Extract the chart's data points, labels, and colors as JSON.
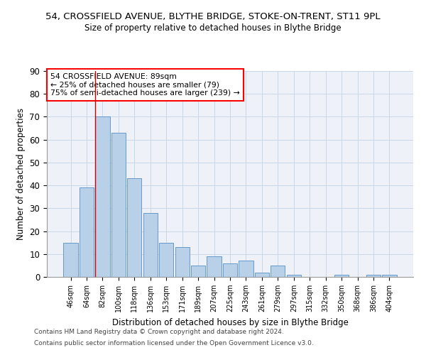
{
  "title_line1": "54, CROSSFIELD AVENUE, BLYTHE BRIDGE, STOKE-ON-TRENT, ST11 9PL",
  "title_line2": "Size of property relative to detached houses in Blythe Bridge",
  "xlabel": "Distribution of detached houses by size in Blythe Bridge",
  "ylabel": "Number of detached properties",
  "bar_labels": [
    "46sqm",
    "64sqm",
    "82sqm",
    "100sqm",
    "118sqm",
    "136sqm",
    "153sqm",
    "171sqm",
    "189sqm",
    "207sqm",
    "225sqm",
    "243sqm",
    "261sqm",
    "279sqm",
    "297sqm",
    "315sqm",
    "332sqm",
    "350sqm",
    "368sqm",
    "386sqm",
    "404sqm"
  ],
  "bar_values": [
    15,
    39,
    70,
    63,
    43,
    28,
    15,
    13,
    5,
    9,
    6,
    7,
    2,
    5,
    1,
    0,
    0,
    1,
    0,
    1,
    1
  ],
  "bar_color": "#b8d0e8",
  "bar_edge_color": "#6699cc",
  "ylim": [
    0,
    90
  ],
  "yticks": [
    0,
    10,
    20,
    30,
    40,
    50,
    60,
    70,
    80,
    90
  ],
  "red_line_index": 2,
  "annotation_title": "54 CROSSFIELD AVENUE: 89sqm",
  "annotation_line2": "← 25% of detached houses are smaller (79)",
  "annotation_line3": "75% of semi-detached houses are larger (239) →",
  "bg_color": "#eef2f8",
  "grid_color": "#c8d8e8",
  "footer_line1": "Contains HM Land Registry data © Crown copyright and database right 2024.",
  "footer_line2": "Contains public sector information licensed under the Open Government Licence v3.0."
}
